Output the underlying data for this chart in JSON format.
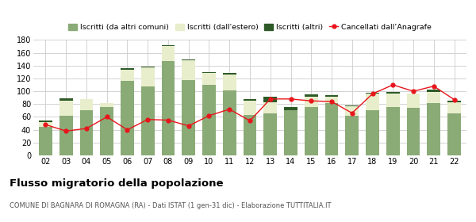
{
  "years": [
    "02",
    "03",
    "04",
    "05",
    "06",
    "07",
    "08",
    "09",
    "10",
    "11",
    "12",
    "13",
    "14",
    "15",
    "16",
    "17",
    "18",
    "19",
    "20",
    "21",
    "22"
  ],
  "iscritti_comuni": [
    45,
    62,
    70,
    76,
    116,
    107,
    147,
    118,
    110,
    101,
    63,
    65,
    70,
    76,
    82,
    62,
    70,
    75,
    74,
    82,
    65
  ],
  "iscritti_estero": [
    7,
    23,
    18,
    5,
    18,
    30,
    23,
    30,
    18,
    25,
    22,
    18,
    0,
    16,
    10,
    15,
    27,
    22,
    22,
    17,
    18
  ],
  "iscritti_altri": [
    2,
    4,
    0,
    1,
    2,
    2,
    2,
    2,
    2,
    2,
    3,
    8,
    5,
    3,
    2,
    1,
    1,
    2,
    1,
    4,
    2
  ],
  "cancellati": [
    48,
    38,
    42,
    60,
    40,
    56,
    55,
    46,
    62,
    72,
    54,
    88,
    88,
    85,
    84,
    66,
    96,
    110,
    100,
    108,
    87
  ],
  "color_comuni": "#8aaa76",
  "color_estero": "#e8eecc",
  "color_altri": "#2d5a27",
  "color_cancellati": "#e8151b",
  "ylim": [
    0,
    180
  ],
  "yticks": [
    0,
    20,
    40,
    60,
    80,
    100,
    120,
    140,
    160,
    180
  ],
  "legend_labels": [
    "Iscritti (da altri comuni)",
    "Iscritti (dall'estero)",
    "Iscritti (altri)",
    "Cancellati dall’Anagrafe"
  ],
  "title": "Flusso migratorio della popolazione",
  "subtitle": "COMUNE DI BAGNARA DI ROMAGNA (RA) - Dati ISTAT (1 gen-31 dic) - Elaborazione TUTTITALIA.IT",
  "background_color": "#ffffff",
  "grid_color": "#cccccc",
  "bar_width": 0.65
}
